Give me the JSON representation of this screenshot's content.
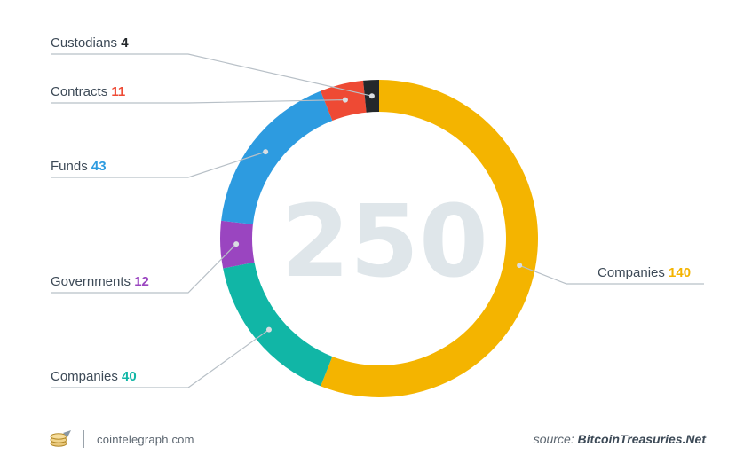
{
  "chart_data": {
    "type": "pie",
    "style": "donut",
    "total": "250",
    "slices": [
      {
        "label": "Companies",
        "value": 140,
        "color": "#f4b400",
        "side": "right"
      },
      {
        "label": "Companies",
        "value": 40,
        "color": "#11b6a6",
        "side": "left"
      },
      {
        "label": "Governments",
        "value": 12,
        "color": "#9a45c0",
        "side": "left"
      },
      {
        "label": "Funds",
        "value": 43,
        "color": "#2d9be0",
        "side": "left"
      },
      {
        "label": "Contracts",
        "value": 11,
        "color": "#ee4a34",
        "side": "left"
      },
      {
        "label": "Custodians",
        "value": 4,
        "color": "#24282b",
        "side": "left"
      }
    ]
  },
  "footer": {
    "site": "cointelegraph.com",
    "source_prefix": "source:",
    "source_name": "BitcoinTreasuries.Net"
  },
  "icons": {
    "logo": "cointelegraph-logo-icon"
  }
}
